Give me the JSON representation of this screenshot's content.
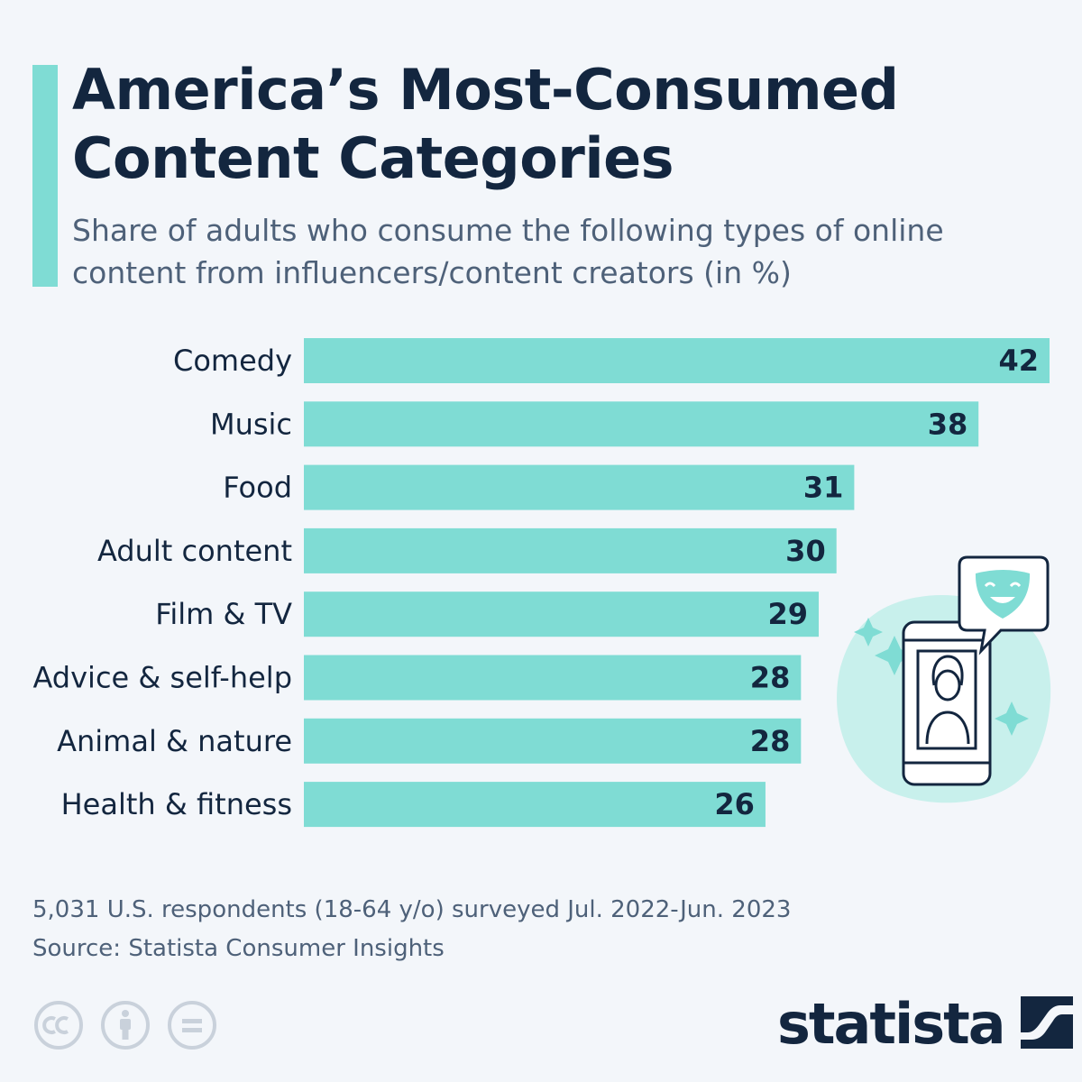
{
  "header": {
    "title_line1": "America’s Most-Consumed",
    "title_line2": "Content Categories",
    "subtitle_line1": "Share of adults who consume the following types of online",
    "subtitle_line2": "content from influencers/content creators (in %)"
  },
  "colors": {
    "background": "#f3f6fa",
    "accent": "#7fdcd4",
    "bar": "#7fdcd4",
    "text_dark": "#13263f",
    "text_muted": "#4e6179",
    "license_icon": "#c9d1db"
  },
  "chart_data": {
    "type": "bar",
    "orientation": "horizontal",
    "title": "",
    "xlabel": "",
    "ylabel": "",
    "categories": [
      "Comedy",
      "Music",
      "Food",
      "Adult content",
      "Film & TV",
      "Advice & self-help",
      "Animal & nature",
      "Health & fitness"
    ],
    "values": [
      42,
      38,
      31,
      30,
      29,
      28,
      28,
      26
    ],
    "xlim": [
      0,
      42
    ],
    "grid": false,
    "data_labels": true
  },
  "illustration": {
    "icons": [
      "sparkle-icon",
      "smartphone-icon",
      "person-icon",
      "speech-bubble-icon",
      "comedy-mask-icon"
    ]
  },
  "footer": {
    "note": "5,031 U.S. respondents (18-64 y/o) surveyed Jul. 2022-Jun. 2023",
    "source": "Source: Statista Consumer Insights",
    "license_icons": [
      "creative-commons-icon",
      "attribution-icon",
      "no-derivatives-icon"
    ],
    "brand": "statista"
  }
}
